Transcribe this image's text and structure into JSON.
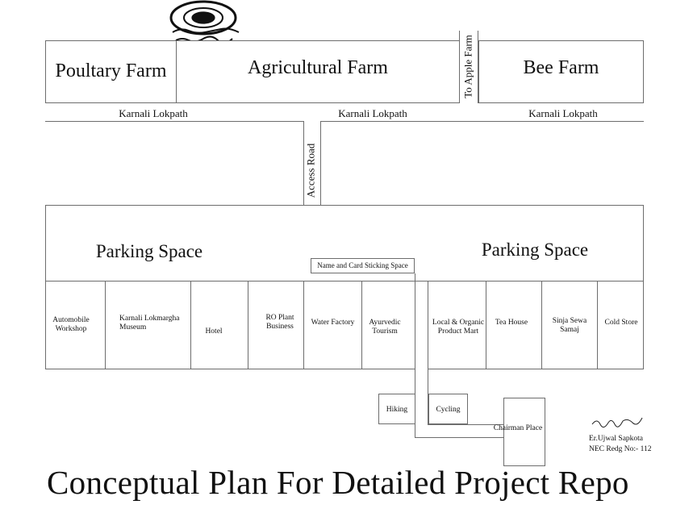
{
  "farms": {
    "poultry": "Poultary Farm",
    "agricultural": "Agricultural Farm",
    "to_apple": "To Apple Farm",
    "bee": "Bee Farm"
  },
  "roads": {
    "lokpath_left": "Karnali Lokpath",
    "lokpath_mid": "Karnali Lokpath",
    "lokpath_right": "Karnali Lokpath",
    "access": "Access Road"
  },
  "parking": {
    "left": "Parking Space",
    "right": "Parking Space",
    "sticking": "Name and Card Sticking Space"
  },
  "shops": [
    "Automobile Workshop",
    "Karnali Lokmargha Museum",
    "Hotel",
    "RO Plant Business",
    "Water Factory",
    "Ayurvedic Tourism",
    "Local & Organic Product Mart",
    "Tea House",
    "Sinja Sewa Samaj",
    "Cold Store"
  ],
  "extras": {
    "hiking": "Hiking",
    "cycling": "Cycling",
    "chairman": "Chairman Place"
  },
  "engineer": {
    "name": "Er.Ujwal Sapkota",
    "reg": "NEC Redg No:- 112"
  },
  "title": "Conceptual Plan For Detailed Project Repo"
}
